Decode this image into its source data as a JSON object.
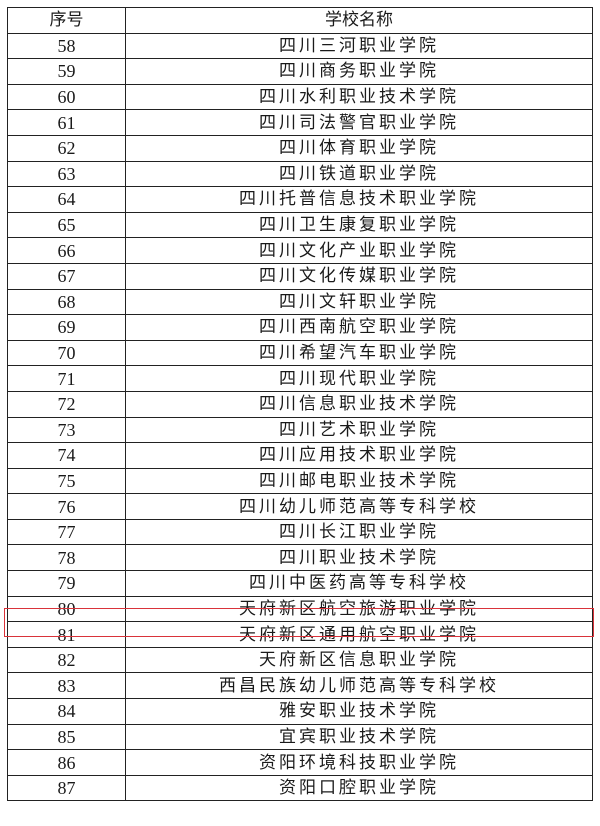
{
  "table": {
    "headers": [
      "序号",
      "学校名称"
    ],
    "rows": [
      [
        "58",
        "四川三河职业学院"
      ],
      [
        "59",
        "四川商务职业学院"
      ],
      [
        "60",
        "四川水利职业技术学院"
      ],
      [
        "61",
        "四川司法警官职业学院"
      ],
      [
        "62",
        "四川体育职业学院"
      ],
      [
        "63",
        "四川铁道职业学院"
      ],
      [
        "64",
        "四川托普信息技术职业学院"
      ],
      [
        "65",
        "四川卫生康复职业学院"
      ],
      [
        "66",
        "四川文化产业职业学院"
      ],
      [
        "67",
        "四川文化传媒职业学院"
      ],
      [
        "68",
        "四川文轩职业学院"
      ],
      [
        "69",
        "四川西南航空职业学院"
      ],
      [
        "70",
        "四川希望汽车职业学院"
      ],
      [
        "71",
        "四川现代职业学院"
      ],
      [
        "72",
        "四川信息职业技术学院"
      ],
      [
        "73",
        "四川艺术职业学院"
      ],
      [
        "74",
        "四川应用技术职业学院"
      ],
      [
        "75",
        "四川邮电职业技术学院"
      ],
      [
        "76",
        "四川幼儿师范高等专科学校"
      ],
      [
        "77",
        "四川长江职业学院"
      ],
      [
        "78",
        "四川职业技术学院"
      ],
      [
        "79",
        "四川中医药高等专科学校"
      ],
      [
        "80",
        "天府新区航空旅游职业学院"
      ],
      [
        "81",
        "天府新区通用航空职业学院"
      ],
      [
        "82",
        "天府新区信息职业学院"
      ],
      [
        "83",
        "西昌民族幼儿师范高等专科学校"
      ],
      [
        "84",
        "雅安职业技术学院"
      ],
      [
        "85",
        "宜宾职业技术学院"
      ],
      [
        "86",
        "资阳环境科技职业学院"
      ],
      [
        "87",
        "资阳口腔职业学院"
      ]
    ],
    "highlighted_row": "80",
    "highlight_color": "#d9333a"
  }
}
